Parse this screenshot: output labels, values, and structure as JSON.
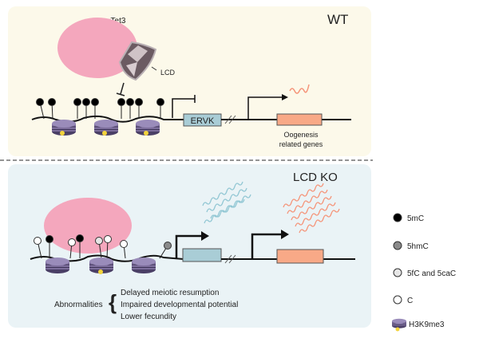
{
  "wt_panel": {
    "title": "WT",
    "protein": "Tet3",
    "domain_label": "LCD",
    "element_label": "ERVK",
    "gene_label_line1": "Oogenesis",
    "gene_label_line2": "related genes"
  },
  "ko_panel": {
    "title": "LCD KO",
    "abnormalities_label": "Abnormalities",
    "abnormalities": [
      "Delayed meiotic resumption",
      "Impaired developmental potential",
      "Lower fecundity"
    ]
  },
  "legend": {
    "items": [
      {
        "label": "5mC",
        "color": "#000000"
      },
      {
        "label": "5hmC",
        "color": "#8a8a8a"
      },
      {
        "label": "5fC and 5caC",
        "color": "#e6e6e6"
      },
      {
        "label": "C",
        "color": "#ffffff"
      },
      {
        "label": "H3K9me3",
        "color": "#7d6e9c"
      }
    ]
  },
  "colors": {
    "wt_bg": "#fcf9ea",
    "ko_bg": "#eaf3f6",
    "tet3": "#f4a7bd",
    "ervk": "#a9cdd6",
    "gene": "#f8a987",
    "nucleosome": "#7d6e9c",
    "h3k9me3_mark": "#f2d33c"
  }
}
